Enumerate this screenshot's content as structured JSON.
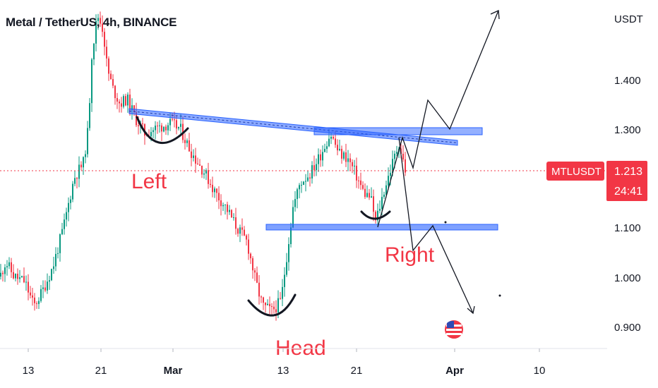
{
  "chart_data": {
    "type": "candlestick",
    "title": "Metal / TetherUS, 4h, BINANCE",
    "price_axis_unit": "USDT",
    "y_ticks": [
      "1.400",
      "1.300",
      "1.100",
      "1.000",
      "0.900"
    ],
    "x_ticks": [
      "13",
      "21",
      "Mar",
      "13",
      "21",
      "Apr",
      "10"
    ],
    "ylim": [
      0.88,
      1.5
    ],
    "last_price": {
      "symbol": "MTLUSDT",
      "price": "1.213",
      "countdown": "24:41"
    },
    "annotations": [
      {
        "text": "Left",
        "role": "left-shoulder"
      },
      {
        "text": "Head",
        "role": "head"
      },
      {
        "text": "Right",
        "role": "right-shoulder"
      }
    ],
    "levels": {
      "neckline_start": 1.335,
      "neckline_end": 1.27,
      "support": 1.1,
      "resistance": 1.295
    },
    "colors": {
      "up": "#089981",
      "down": "#f23645",
      "pattern_line": "#2962ff",
      "label": "#f23645"
    },
    "grid": false
  }
}
